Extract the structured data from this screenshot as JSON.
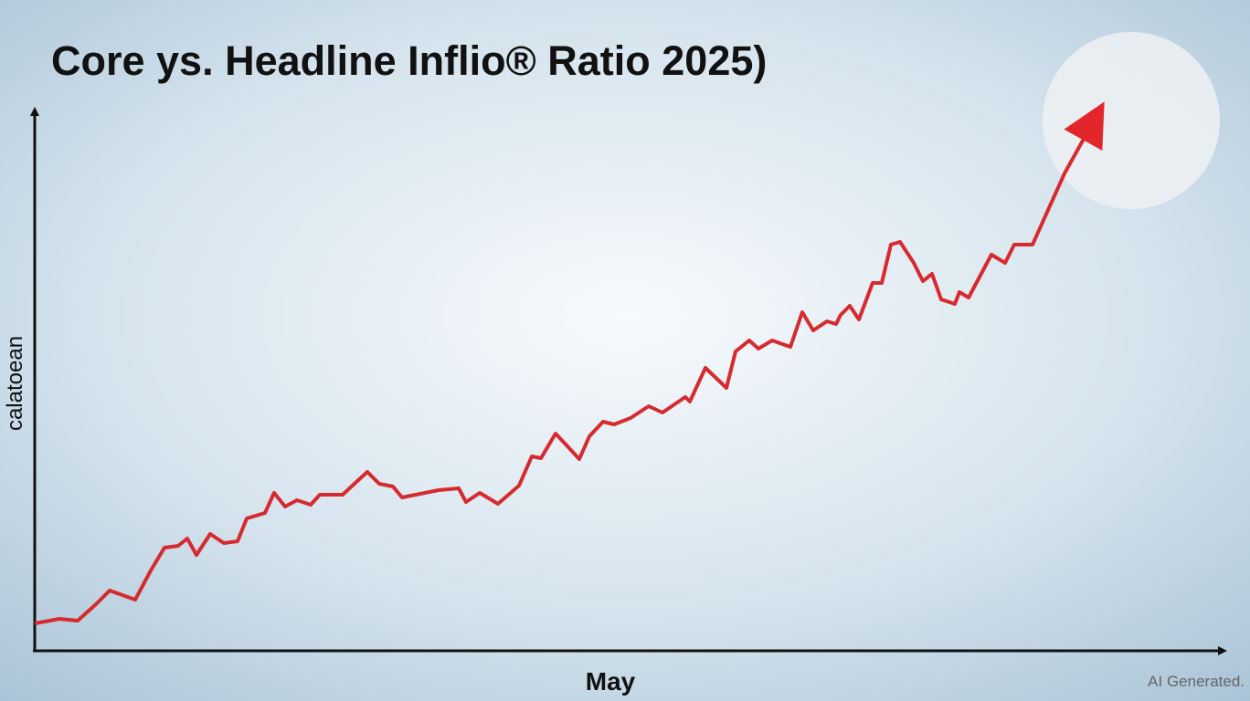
{
  "chart_data": {
    "type": "line",
    "title": "Core ys. Headline Inflio® Ratio 2025)",
    "ylabel": "calatoean",
    "xlabel": "May",
    "watermark": "AI Generated.",
    "color": "#d62a2f",
    "xlim": [
      0,
      1302
    ],
    "ylim": [
      0,
      600
    ],
    "x": [
      0,
      27,
      47,
      67,
      82,
      110,
      127,
      142,
      157,
      167,
      177,
      192,
      207,
      222,
      232,
      252,
      262,
      274,
      287,
      302,
      312,
      337,
      352,
      364,
      377,
      392,
      402,
      422,
      442,
      464,
      472,
      487,
      507,
      530,
      544,
      554,
      570,
      584,
      596,
      607,
      622,
      634,
      652,
      672,
      687,
      712,
      717,
      734,
      757,
      767,
      782,
      792,
      807,
      827,
      840,
      852,
      867,
      877,
      882,
      892,
      902,
      917,
      927,
      937,
      947,
      962,
      972,
      982,
      992,
      1007,
      1012,
      1022,
      1047,
      1062,
      1072,
      1092,
      1127,
      1152
    ],
    "values": [
      29,
      34,
      32,
      50,
      65,
      55,
      87,
      112,
      114,
      122,
      104,
      127,
      117,
      119,
      144,
      150,
      172,
      157,
      164,
      159,
      170,
      170,
      184,
      195,
      182,
      179,
      167,
      171,
      175,
      177,
      162,
      172,
      160,
      180,
      212,
      210,
      237,
      222,
      209,
      234,
      250,
      247,
      254,
      267,
      260,
      277,
      272,
      309,
      287,
      327,
      339,
      330,
      339,
      332,
      370,
      350,
      360,
      357,
      367,
      377,
      362,
      402,
      402,
      444,
      447,
      424,
      404,
      412,
      384,
      379,
      392,
      386,
      433,
      424,
      444,
      444,
      522,
      567
    ]
  }
}
